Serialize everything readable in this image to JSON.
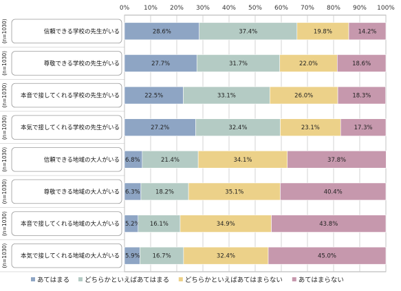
{
  "chart_data": {
    "type": "bar",
    "orientation": "horizontal",
    "stacked": true,
    "percent": true,
    "xlim": [
      0,
      100
    ],
    "xticks": [
      "0%",
      "10%",
      "20%",
      "30%",
      "40%",
      "50%",
      "60%",
      "70%",
      "80%",
      "90%",
      "100%"
    ],
    "categories": [
      "信頼できる学校の先生がいる",
      "尊敬できる学校の先生がいる",
      "本音で接してくれる学校の先生がいる",
      "本気で接してくれる学校の先生がいる",
      "信頼できる地域の大人がいる",
      "尊敬できる地域の大人がいる",
      "本音で接してくれる地域の大人がいる",
      "本気で接してくれる地域の大人がいる"
    ],
    "sample_sizes": [
      "(n=1030)",
      "(n=1030)",
      "(n=1030)",
      "(n=1030)",
      "(n=1030)",
      "(n=1030)",
      "(n=1030)",
      "(n=1030)"
    ],
    "series": [
      {
        "name": "あてはまる",
        "color": "#8ea5c4",
        "values": [
          28.6,
          27.7,
          22.5,
          27.2,
          6.8,
          6.3,
          5.2,
          5.9
        ]
      },
      {
        "name": "どちらかといえばあてはまる",
        "color": "#b4cbc4",
        "values": [
          37.4,
          31.7,
          33.1,
          32.4,
          21.4,
          18.2,
          16.1,
          16.7
        ]
      },
      {
        "name": "どちらかといえばあてはまらない",
        "color": "#ecd189",
        "values": [
          19.8,
          22.0,
          26.0,
          23.1,
          34.1,
          35.1,
          34.9,
          32.4
        ]
      },
      {
        "name": "あてはまらない",
        "color": "#c698ad",
        "values": [
          14.2,
          18.6,
          18.3,
          17.3,
          37.8,
          40.4,
          43.8,
          45.0
        ]
      }
    ],
    "grid": true,
    "legend_position": "bottom"
  }
}
